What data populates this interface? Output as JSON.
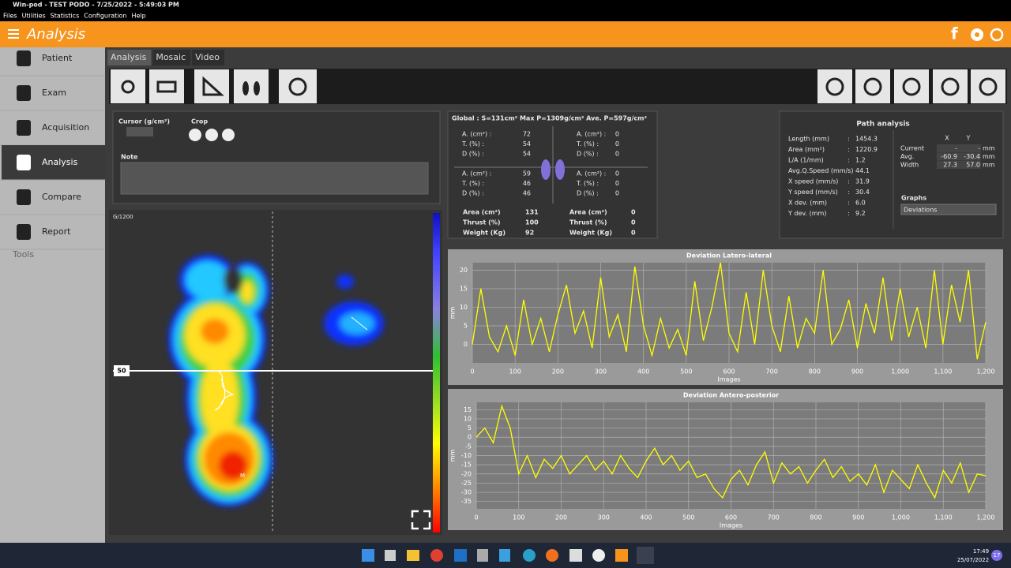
{
  "window": {
    "title": "Win-pod - TEST PODO - 7/25/2022 - 5:49:03 PM"
  },
  "menu": [
    "Files",
    "Utilities",
    "Statistics",
    "Configuration",
    "Help"
  ],
  "header": {
    "title": "Analysis"
  },
  "sidebar": {
    "items": [
      "Patient",
      "Exam",
      "Acquisition",
      "Analysis",
      "Compare",
      "Report"
    ],
    "active": 3,
    "tools": "Tools"
  },
  "tabs": {
    "items": [
      "Analysis",
      "Mosaic",
      "Video"
    ],
    "active": 0
  },
  "cursor_panel": {
    "cursor": "Cursor (g/cm²)",
    "crop": "Crop",
    "note": "Note"
  },
  "pressure_map": {
    "scale": "G/1200",
    "marker": "50",
    "max_mark": "M"
  },
  "stats": {
    "global": "Global : S=131cm²  Max P=1309g/cm²  Ave. P=597g/cm²",
    "quadrant_labels": [
      "A. (cm²) :",
      "T. (%) :",
      "D (%) :"
    ],
    "quadrants": [
      [
        "72",
        "54",
        "54"
      ],
      [
        "0",
        "0",
        "0"
      ],
      [
        "59",
        "46",
        "46"
      ],
      [
        "0",
        "0",
        "0"
      ]
    ],
    "total_labels": [
      "Area (cm²)",
      "Thrust (%)",
      "Weight (Kg)"
    ],
    "totals_left": [
      "131",
      "100",
      "92"
    ],
    "totals_right": [
      "0",
      "0",
      "0"
    ]
  },
  "path_analysis": {
    "title": "Path analysis",
    "separator": ":",
    "rows": [
      {
        "label": "Length (mm)",
        "value": "1454.3"
      },
      {
        "label": "Area (mm²)",
        "value": "1220.9"
      },
      {
        "label": "L/A (1/mm)",
        "value": "1.2"
      },
      {
        "label": "Avg.Q.Speed (mm/s)",
        "value": "44.1"
      },
      {
        "label": "X speed (mm/s)",
        "value": "31.9"
      },
      {
        "label": "Y speed (mm/s)",
        "value": "30.4"
      },
      {
        "label": "X dev. (mm)",
        "value": "6.0"
      },
      {
        "label": "Y dev. (mm)",
        "value": "9.2"
      }
    ],
    "xy_headers": [
      "X",
      "Y"
    ],
    "xy_rows": [
      {
        "label": "Current",
        "x": "-",
        "y": "-"
      },
      {
        "label": "Avg.",
        "x": "-60.9",
        "y": "-30.4"
      },
      {
        "label": "Width",
        "x": "27.3",
        "y": "57.0"
      }
    ],
    "unit": "mm",
    "graphs_label": "Graphs",
    "graphs_value": "Deviations"
  },
  "chart_data": [
    {
      "type": "line",
      "title": "Deviation Latero-lateral",
      "x_label": "Images",
      "y_label": "mm",
      "color": "#ffff00",
      "grid": true,
      "xlim": [
        0,
        1200
      ],
      "ylim": [
        -5,
        22
      ],
      "xticks": [
        0,
        100,
        200,
        300,
        400,
        500,
        600,
        700,
        800,
        900,
        {
          "value": 1000,
          "label": "1,000"
        },
        {
          "value": 1100,
          "label": "1,100"
        },
        {
          "value": 1200,
          "label": "1,200"
        }
      ],
      "yticks": [
        0,
        5,
        10,
        15,
        20
      ],
      "x": [
        0,
        20,
        40,
        60,
        80,
        100,
        120,
        140,
        160,
        180,
        200,
        220,
        240,
        260,
        280,
        300,
        320,
        340,
        360,
        380,
        400,
        420,
        440,
        460,
        480,
        500,
        520,
        540,
        560,
        580,
        600,
        620,
        640,
        660,
        680,
        700,
        720,
        740,
        760,
        780,
        800,
        820,
        840,
        860,
        880,
        900,
        920,
        940,
        960,
        980,
        1000,
        1020,
        1040,
        1060,
        1080,
        1100,
        1120,
        1140,
        1160,
        1180,
        1200
      ],
      "values": [
        0,
        15,
        2,
        -2,
        5,
        -3,
        12,
        0,
        7,
        -2,
        8,
        16,
        3,
        9,
        -1,
        18,
        2,
        8,
        -2,
        21,
        5,
        -3,
        7,
        -1,
        4,
        -3,
        17,
        1,
        10,
        22,
        3,
        -2,
        14,
        0,
        20,
        5,
        -2,
        13,
        -1,
        7,
        3,
        20,
        0,
        4,
        12,
        -1,
        11,
        3,
        18,
        1,
        15,
        2,
        10,
        -1,
        20,
        0,
        16,
        6,
        20,
        -4,
        6
      ]
    },
    {
      "type": "line",
      "title": "Deviation Antero-posterior",
      "x_label": "Images",
      "y_label": "mm",
      "color": "#ffff00",
      "grid": true,
      "xlim": [
        0,
        1200
      ],
      "ylim": [
        -39,
        19
      ],
      "xticks": [
        0,
        100,
        200,
        300,
        400,
        500,
        600,
        700,
        800,
        900,
        {
          "value": 1000,
          "label": "1,000"
        },
        {
          "value": 1100,
          "label": "1,100"
        },
        {
          "value": 1200,
          "label": "1,200"
        }
      ],
      "yticks": [
        15,
        10,
        5,
        0,
        -5,
        -10,
        -15,
        -20,
        -25,
        -30,
        -35
      ],
      "x": [
        0,
        20,
        40,
        60,
        80,
        100,
        120,
        140,
        160,
        180,
        200,
        220,
        240,
        260,
        280,
        300,
        320,
        340,
        360,
        380,
        400,
        420,
        440,
        460,
        480,
        500,
        520,
        540,
        560,
        580,
        600,
        620,
        640,
        660,
        680,
        700,
        720,
        740,
        760,
        780,
        800,
        820,
        840,
        860,
        880,
        900,
        920,
        940,
        960,
        980,
        1000,
        1020,
        1040,
        1060,
        1080,
        1100,
        1120,
        1140,
        1160,
        1180,
        1200
      ],
      "values": [
        0,
        5,
        -3,
        17,
        5,
        -20,
        -10,
        -22,
        -12,
        -17,
        -10,
        -20,
        -15,
        -10,
        -18,
        -13,
        -20,
        -10,
        -17,
        -22,
        -13,
        -6,
        -15,
        -10,
        -18,
        -13,
        -22,
        -20,
        -28,
        -33,
        -23,
        -18,
        -26,
        -15,
        -8,
        -25,
        -14,
        -20,
        -16,
        -25,
        -18,
        -12,
        -22,
        -16,
        -24,
        -20,
        -26,
        -15,
        -30,
        -18,
        -23,
        -28,
        -15,
        -25,
        -33,
        -18,
        -25,
        -14,
        -30,
        -20,
        -21
      ]
    }
  ],
  "taskbar": {
    "time": "17:49",
    "date": "25/07/2022",
    "badge": "17"
  }
}
